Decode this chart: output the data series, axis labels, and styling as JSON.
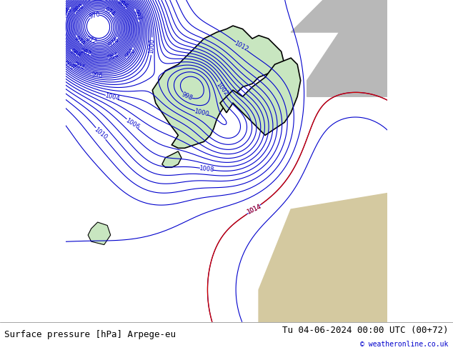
{
  "title_left": "Surface pressure [hPa] Arpege-eu",
  "title_right": "Tu 04-06-2024 00:00 UTC (00+72)",
  "credit": "© weatheronline.co.uk",
  "bg_ocean": "#c8e6c0",
  "bg_land_scandinavia": "#c8e6c0",
  "bg_land_other": "#d4c9a0",
  "bg_sea_grey": "#c0c0c0",
  "contour_color": "#0000cc",
  "contour_color_red": "#cc0000",
  "bottom_bar_color": "#e8e8e8",
  "bottom_bar_height": 0.08,
  "font_size_bottom": 9,
  "font_size_contour": 7,
  "pressure_min": 970,
  "pressure_max": 1015,
  "pressure_step": 1,
  "figsize": [
    6.34,
    4.9
  ],
  "dpi": 100
}
